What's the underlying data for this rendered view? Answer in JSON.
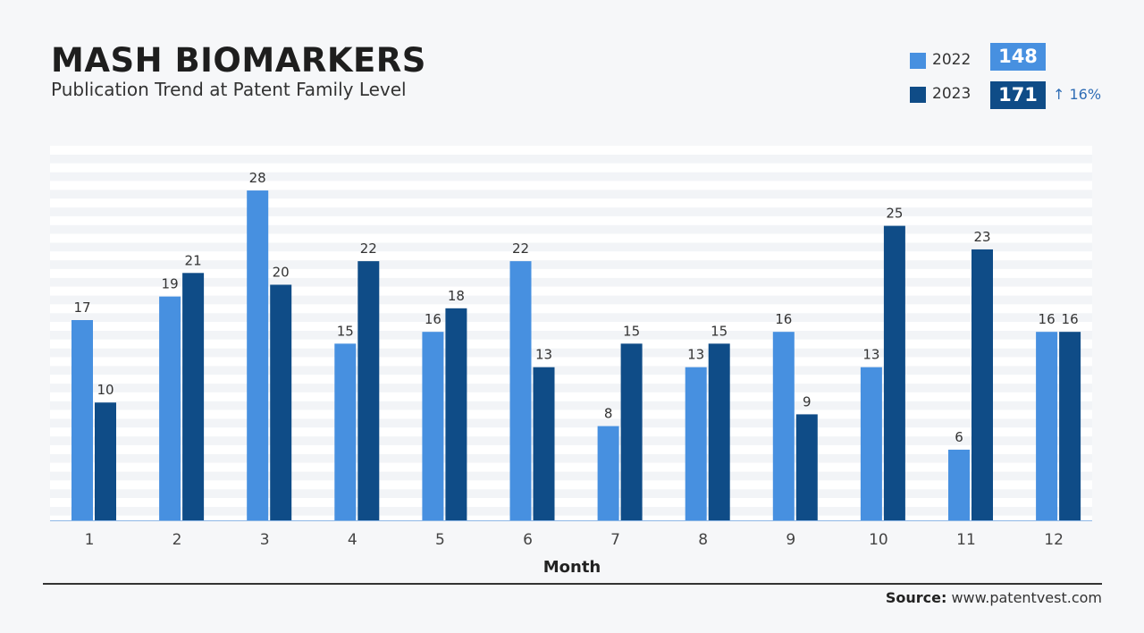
{
  "header": {
    "title": "MASH BIOMARKERS",
    "subtitle": "Publication Trend at Patent Family Level"
  },
  "summary": {
    "items": [
      {
        "label": "2022",
        "total": "148",
        "color": "#4790e0"
      },
      {
        "label": "2023",
        "total": "171",
        "color": "#0f4c87",
        "change": "↑ 16%"
      }
    ]
  },
  "chart_data": {
    "type": "bar",
    "xlabel": "Month",
    "ylabel": "",
    "categories": [
      "1",
      "2",
      "3",
      "4",
      "5",
      "6",
      "7",
      "8",
      "9",
      "10",
      "11",
      "12"
    ],
    "series": [
      {
        "name": "2022",
        "color": "#4790e0",
        "values": [
          17,
          19,
          28,
          15,
          16,
          22,
          8,
          13,
          16,
          13,
          6,
          16
        ]
      },
      {
        "name": "2023",
        "color": "#0f4c87",
        "values": [
          10,
          21,
          20,
          22,
          18,
          13,
          15,
          15,
          9,
          25,
          23,
          16
        ]
      }
    ],
    "ylim": [
      0,
      31.8
    ],
    "grid": "striped background",
    "legend": "top-right"
  },
  "footer": {
    "source_label": "Source:",
    "source_value": "www.patentvest.com"
  }
}
